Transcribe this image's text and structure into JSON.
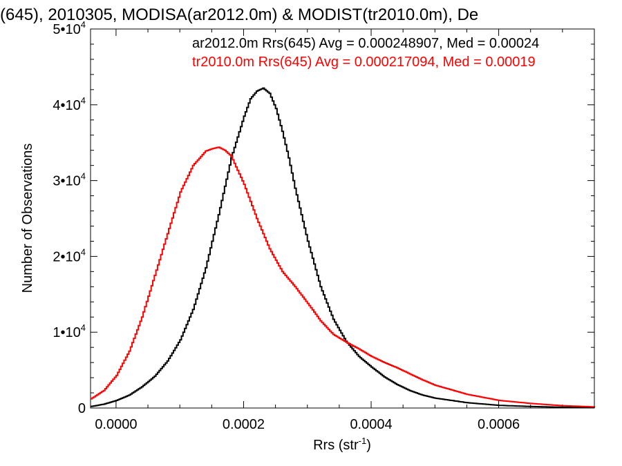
{
  "chart_data": {
    "type": "line",
    "title": "(645), 2010305, MODISA(ar2012.0m) & MODIST(tr2010.0m), De",
    "xlabel": "Rrs (str",
    "xlabel_exp": "-1",
    "xlabel_close": ")",
    "ylabel": "Number of Observations",
    "xlim": [
      -4e-05,
      0.00075
    ],
    "ylim": [
      0,
      50000
    ],
    "x_ticks": [
      {
        "value": 0.0,
        "label": "0.0000"
      },
      {
        "value": 0.0002,
        "label": "0.0002"
      },
      {
        "value": 0.0004,
        "label": "0.0004"
      },
      {
        "value": 0.0006,
        "label": "0.0006"
      }
    ],
    "y_ticks": [
      {
        "value": 0,
        "mant": "0",
        "exp": ""
      },
      {
        "value": 10000,
        "mant": "1•10",
        "exp": "4"
      },
      {
        "value": 20000,
        "mant": "2•10",
        "exp": "4"
      },
      {
        "value": 30000,
        "mant": "3•10",
        "exp": "4"
      },
      {
        "value": 40000,
        "mant": "4•10",
        "exp": "4"
      },
      {
        "value": 50000,
        "mant": "5•10",
        "exp": "4"
      }
    ],
    "grid": false,
    "legend_position": "top-right",
    "series": [
      {
        "name": "ar2012.0m Rrs(645) Avg = 0.000248907, Med = 0.00024",
        "color": "#000000",
        "x": [
          -4e-05,
          -2e-05,
          0.0,
          2e-05,
          4e-05,
          6e-05,
          8e-05,
          0.0001,
          0.00012,
          0.00014,
          0.00016,
          0.00018,
          0.0002,
          0.00021,
          0.00022,
          0.00023,
          0.00024,
          0.00025,
          0.00026,
          0.00027,
          0.00028,
          0.0003,
          0.00032,
          0.00034,
          0.00036,
          0.00038,
          0.0004,
          0.00042,
          0.00044,
          0.00046,
          0.00048,
          0.0005,
          0.00055,
          0.0006,
          0.00065,
          0.0007,
          0.00075
        ],
        "values": [
          200,
          500,
          1000,
          1700,
          2800,
          4200,
          6200,
          9000,
          13000,
          18500,
          25500,
          33000,
          38500,
          40800,
          41800,
          42200,
          41500,
          39500,
          36500,
          33000,
          29000,
          22000,
          16000,
          11700,
          8800,
          6800,
          5400,
          4100,
          3100,
          2300,
          1700,
          1300,
          700,
          350,
          200,
          100,
          50
        ]
      },
      {
        "name": "tr2010.0m Rrs(645) Avg = 0.000217094, Med = 0.00019",
        "color": "#ff0000",
        "x": [
          -4e-05,
          -2e-05,
          0.0,
          2e-05,
          4e-05,
          6e-05,
          8e-05,
          0.0001,
          0.00012,
          0.00014,
          0.00015,
          0.00016,
          0.00017,
          0.00018,
          0.0002,
          0.00022,
          0.00024,
          0.00026,
          0.00028,
          0.0003,
          0.00032,
          0.00034,
          0.00036,
          0.00038,
          0.0004,
          0.00042,
          0.00044,
          0.00046,
          0.00048,
          0.0005,
          0.00055,
          0.0006,
          0.00065,
          0.0007,
          0.00075
        ],
        "values": [
          1200,
          2300,
          4300,
          7500,
          12000,
          17500,
          23000,
          28500,
          32000,
          33900,
          34200,
          34400,
          34000,
          33200,
          29500,
          25000,
          21000,
          18000,
          16000,
          13800,
          11500,
          9700,
          8700,
          7800,
          6800,
          6000,
          5300,
          4500,
          3700,
          3000,
          1800,
          1000,
          600,
          300,
          150
        ]
      }
    ]
  }
}
